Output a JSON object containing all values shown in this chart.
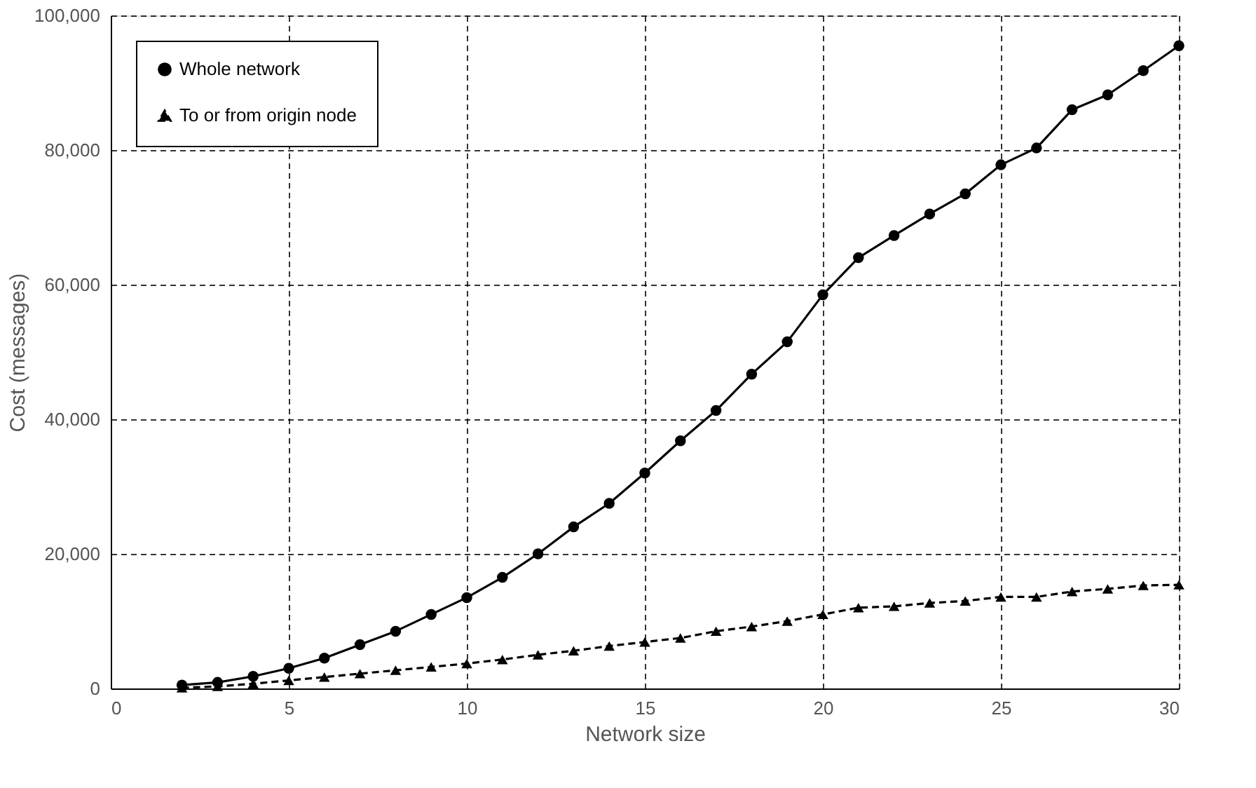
{
  "chart_data": {
    "type": "line",
    "xlabel": "Network size",
    "ylabel": "Cost (messages)",
    "x": [
      2,
      3,
      4,
      5,
      6,
      7,
      8,
      9,
      10,
      11,
      12,
      13,
      14,
      15,
      16,
      17,
      18,
      19,
      20,
      21,
      22,
      23,
      24,
      25,
      26,
      27,
      28,
      29,
      30
    ],
    "series": [
      {
        "name": "Whole network",
        "color": "#000000",
        "marker": "circle",
        "line_style": "solid",
        "values": [
          500,
          900,
          1800,
          3000,
          4500,
          6500,
          8500,
          11000,
          13500,
          16500,
          20000,
          24000,
          27500,
          32000,
          36800,
          41300,
          46700,
          51500,
          58500,
          64000,
          67300,
          70500,
          73500,
          77800,
          80300,
          86000,
          88200,
          91800,
          95500
        ]
      },
      {
        "name": "To or from origin node",
        "color": "#000000",
        "marker": "triangle",
        "line_style": "dashed",
        "values": [
          100,
          300,
          700,
          1200,
          1700,
          2200,
          2700,
          3200,
          3700,
          4300,
          5000,
          5600,
          6300,
          6900,
          7500,
          8500,
          9200,
          10000,
          11000,
          12000,
          12200,
          12700,
          13000,
          13600,
          13600,
          14400,
          14800,
          15300,
          15400
        ]
      }
    ],
    "xlim": [
      0,
      30
    ],
    "xticks": [
      0,
      5,
      10,
      15,
      20,
      25,
      30
    ],
    "ylim": [
      0,
      100000
    ],
    "yticks": [
      0,
      {
        "value": 20000,
        "label": "20,000"
      },
      {
        "value": 40000,
        "label": "40,000"
      },
      {
        "value": 60000,
        "label": "60,000"
      },
      {
        "value": 80000,
        "label": "80,000"
      },
      {
        "value": 100000,
        "label": "100,000"
      }
    ],
    "grid": true,
    "legend": "top left"
  }
}
